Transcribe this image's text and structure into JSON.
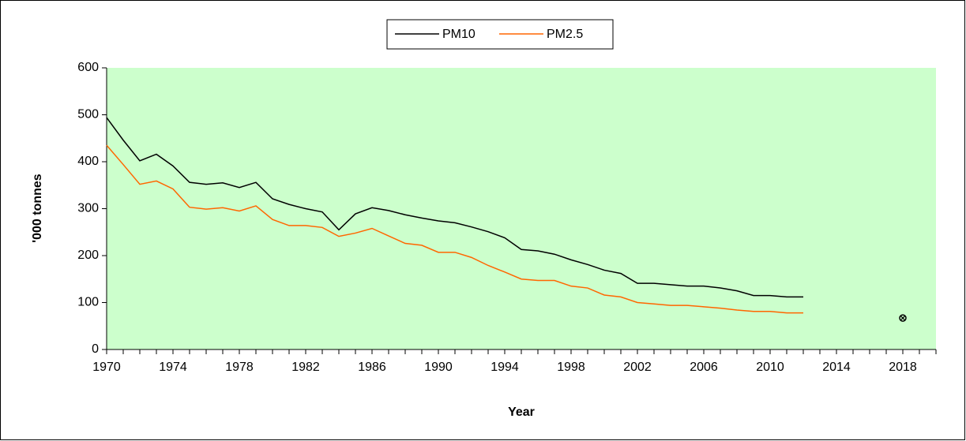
{
  "chart_data": {
    "type": "line",
    "x": [
      1970,
      1971,
      1972,
      1973,
      1974,
      1975,
      1976,
      1977,
      1978,
      1979,
      1980,
      1981,
      1982,
      1983,
      1984,
      1985,
      1986,
      1987,
      1988,
      1989,
      1990,
      1991,
      1992,
      1993,
      1994,
      1995,
      1996,
      1997,
      1998,
      1999,
      2000,
      2001,
      2002,
      2003,
      2004,
      2005,
      2006,
      2007,
      2008,
      2009,
      2010,
      2011,
      2012
    ],
    "series": [
      {
        "name": "PM10",
        "color": "#000000",
        "values": [
          494,
          446,
          402,
          416,
          391,
          356,
          352,
          355,
          345,
          356,
          321,
          309,
          300,
          293,
          255,
          289,
          302,
          296,
          287,
          280,
          274,
          270,
          261,
          251,
          238,
          213,
          210,
          203,
          191,
          181,
          169,
          162,
          141,
          141,
          138,
          135,
          135,
          131,
          125,
          115,
          115,
          112,
          112
        ]
      },
      {
        "name": "PM2.5",
        "color": "#ff6600",
        "values": [
          435,
          394,
          352,
          359,
          342,
          303,
          299,
          302,
          295,
          306,
          277,
          264,
          264,
          260,
          241,
          248,
          258,
          242,
          226,
          222,
          207,
          207,
          196,
          179,
          165,
          150,
          147,
          147,
          135,
          131,
          116,
          112,
          100,
          97,
          94,
          94,
          91,
          88,
          84,
          81,
          81,
          78,
          78
        ]
      }
    ],
    "target": {
      "x": 2018,
      "value": 67
    },
    "xlabel": "Year",
    "ylabel": "'000 tonnes",
    "xlim": [
      1970,
      2020
    ],
    "ylim": [
      0,
      600
    ],
    "xticks": [
      1970,
      1974,
      1978,
      1982,
      1986,
      1990,
      1994,
      1998,
      2002,
      2006,
      2010,
      2014,
      2018
    ],
    "xminorticks": [
      1970,
      1971,
      1972,
      1973,
      1974,
      1975,
      1976,
      1977,
      1978,
      1979,
      1980,
      1981,
      1982,
      1983,
      1984,
      1985,
      1986,
      1987,
      1988,
      1989,
      1990,
      1991,
      1992,
      1993,
      1994,
      1995,
      1996,
      1997,
      1998,
      1999,
      2000,
      2001,
      2002,
      2003,
      2004,
      2005,
      2006,
      2007,
      2008,
      2009,
      2010,
      2011,
      2012,
      2013,
      2014,
      2015,
      2016,
      2017,
      2018,
      2019,
      2020
    ],
    "yticks": [
      0,
      100,
      200,
      300,
      400,
      500,
      600
    ],
    "plot_background": "#ccffcc",
    "legend": "top"
  }
}
